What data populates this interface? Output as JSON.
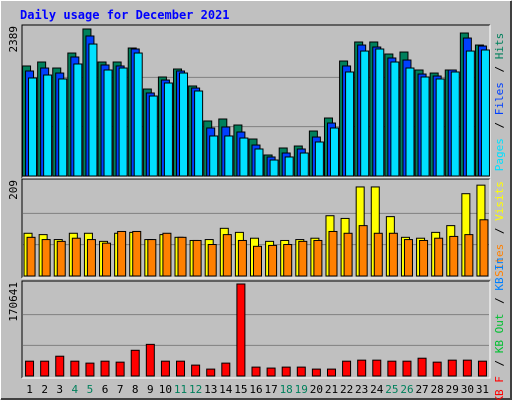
{
  "title": "Daily usage for December 2021",
  "chart_data": [
    {
      "type": "bar",
      "categories": [
        1,
        2,
        3,
        4,
        5,
        6,
        7,
        8,
        9,
        10,
        11,
        12,
        13,
        14,
        15,
        16,
        17,
        18,
        19,
        20,
        21,
        22,
        23,
        24,
        25,
        26,
        27,
        28,
        29,
        30,
        31
      ],
      "category_colors": [
        "#000000",
        "#000000",
        "#000000",
        "#00805c",
        "#00805c",
        "#000000",
        "#000000",
        "#000000",
        "#000000",
        "#000000",
        "#00805c",
        "#00805c",
        "#000000",
        "#000000",
        "#000000",
        "#000000",
        "#000000",
        "#00805c",
        "#00805c",
        "#000000",
        "#000000",
        "#000000",
        "#000000",
        "#000000",
        "#00805c",
        "#00805c",
        "#000000",
        "#000000",
        "#000000",
        "#000000",
        "#000000"
      ],
      "legend_separator": "/",
      "ylim": [
        0,
        2389
      ],
      "yticks": [
        2389
      ],
      "grid_divisions": 3,
      "series": [
        {
          "name": "Hits",
          "color": "#00805c",
          "values": [
            1776,
            1840,
            1743,
            1985,
            2373,
            1840,
            1840,
            2066,
            1404,
            1598,
            1727,
            1453,
            888,
            920,
            823,
            597,
            339,
            452,
            484,
            726,
            936,
            1856,
            2163,
            2163,
            1969,
            2001,
            1711,
            1662,
            1711,
            2308,
            2114
          ]
        },
        {
          "name": "Files",
          "color": "#0040ff",
          "values": [
            1695,
            1743,
            1662,
            1921,
            2260,
            1792,
            1776,
            2050,
            1340,
            1549,
            1695,
            1420,
            775,
            791,
            710,
            500,
            307,
            371,
            436,
            629,
            855,
            1776,
            2114,
            2082,
            1905,
            1872,
            1646,
            1614,
            1711,
            2227,
            2098
          ]
        },
        {
          "name": "Pages",
          "color": "#00e0ff",
          "values": [
            1582,
            1630,
            1566,
            1808,
            2130,
            1711,
            1743,
            1985,
            1291,
            1501,
            1662,
            1372,
            646,
            646,
            613,
            436,
            258,
            307,
            371,
            549,
            775,
            1679,
            2017,
            2050,
            1840,
            1743,
            1598,
            1566,
            1679,
            2017,
            2034
          ]
        }
      ]
    },
    {
      "type": "bar",
      "legend_separator": "/",
      "ylim": [
        0,
        209
      ],
      "yticks": [
        209
      ],
      "grid_divisions": 3,
      "series": [
        {
          "name": "Visits",
          "color": "#ffff00",
          "values": [
            95,
            92,
            81,
            95,
            95,
            77,
            95,
            97,
            81,
            92,
            86,
            79,
            81,
            106,
            97,
            84,
            77,
            79,
            81,
            84,
            134,
            128,
            198,
            198,
            132,
            86,
            84,
            97,
            112,
            183,
            202
          ]
        },
        {
          "name": "Sites",
          "color": "#ff8000",
          "values": [
            86,
            81,
            77,
            84,
            81,
            73,
            99,
            99,
            81,
            95,
            86,
            79,
            70,
            92,
            79,
            66,
            68,
            70,
            77,
            79,
            99,
            95,
            112,
            95,
            95,
            81,
            79,
            84,
            88,
            92,
            125
          ]
        }
      ]
    },
    {
      "type": "bar",
      "legend_separator": "/",
      "ylim": [
        0,
        170641
      ],
      "yticks": [
        170641
      ],
      "grid_divisions": 3,
      "series": [
        {
          "name": "KB In",
          "color": "#0080ff",
          "values": [
            0,
            0,
            0,
            0,
            0,
            0,
            0,
            0,
            0,
            0,
            0,
            0,
            0,
            0,
            0,
            0,
            0,
            0,
            0,
            0,
            0,
            0,
            0,
            0,
            0,
            0,
            0,
            0,
            0,
            0,
            0
          ]
        },
        {
          "name": "KB Out",
          "color": "#00c030",
          "values": [
            0,
            0,
            0,
            0,
            0,
            0,
            0,
            0,
            0,
            0,
            0,
            0,
            0,
            0,
            0,
            0,
            0,
            0,
            0,
            0,
            0,
            0,
            0,
            0,
            0,
            0,
            0,
            0,
            0,
            0,
            0
          ]
        },
        {
          "name": "KB F",
          "color": "#ff0000",
          "values": [
            27500,
            27500,
            36700,
            27500,
            23900,
            27500,
            25700,
            47700,
            58700,
            27500,
            27500,
            20200,
            12800,
            23900,
            170641,
            16500,
            14700,
            16500,
            16500,
            12800,
            12800,
            27500,
            29400,
            29400,
            27500,
            27500,
            33000,
            25700,
            29400,
            29400,
            27500
          ]
        }
      ]
    }
  ]
}
